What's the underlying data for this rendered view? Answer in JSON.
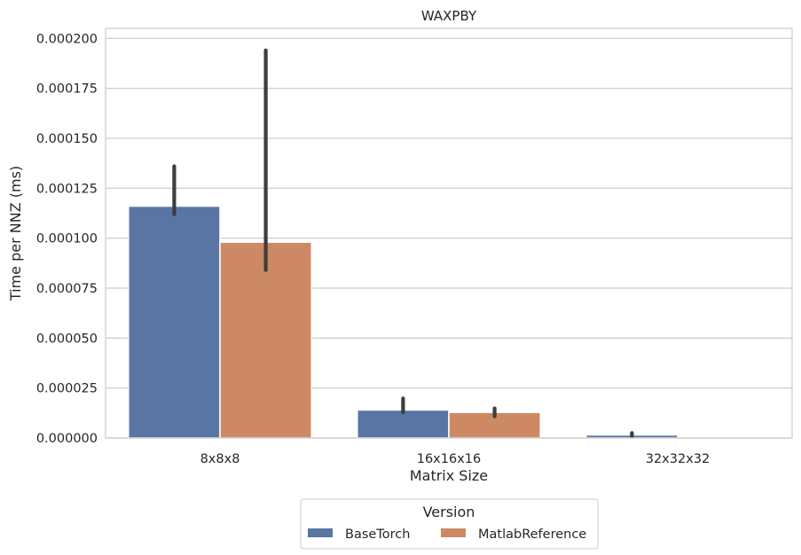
{
  "chart_data": {
    "type": "bar",
    "title": "WAXPBY",
    "xlabel": "Matrix Size",
    "ylabel": "Time per NNZ (ms)",
    "categories": [
      "8x8x8",
      "16x16x16",
      "32x32x32"
    ],
    "ylim": [
      0,
      0.000205
    ],
    "yticks": [
      0,
      2.5e-05,
      5e-05,
      7.5e-05,
      0.0001,
      0.000125,
      0.00015,
      0.000175,
      0.0002
    ],
    "ytick_labels": [
      "0.000000",
      "0.000025",
      "0.000050",
      "0.000075",
      "0.000100",
      "0.000125",
      "0.000150",
      "0.000175",
      "0.000200"
    ],
    "grid": "horizontal",
    "series": [
      {
        "name": "BaseTorch",
        "color": "#5875a4",
        "values": [
          0.000116,
          1.4e-05,
          1.5e-06
        ],
        "error_low": [
          0.000112,
          1.28e-05,
          8e-07
        ],
        "error_high": [
          0.000136,
          1.98e-05,
          2.5e-06
        ]
      },
      {
        "name": "MatlabReference",
        "color": "#cc8963",
        "values": [
          9.8e-05,
          1.28e-05,
          0.0
        ],
        "error_low": [
          8.4e-05,
          1.08e-05,
          0.0
        ],
        "error_high": [
          0.000194,
          1.48e-05,
          0.0
        ]
      }
    ],
    "legend": {
      "title": "Version",
      "placement": "bottom-center"
    }
  }
}
